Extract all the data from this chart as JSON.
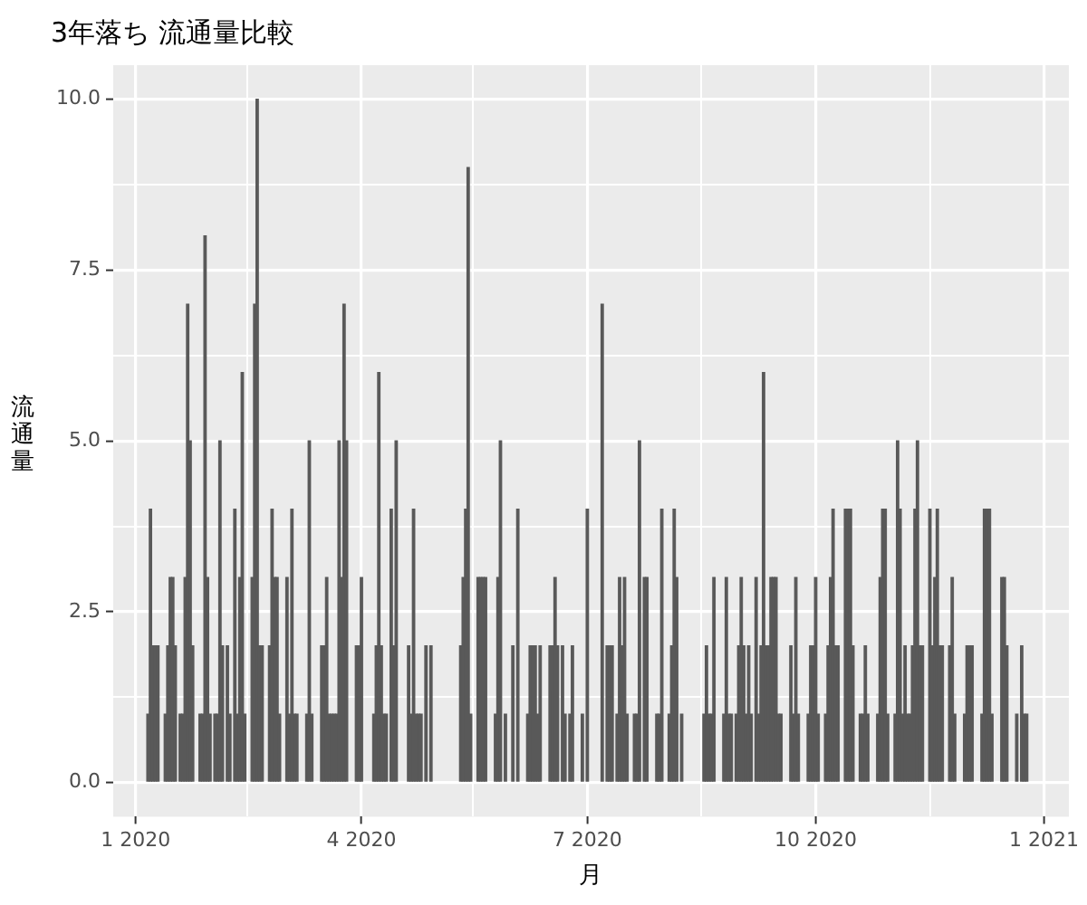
{
  "chart_data": {
    "type": "bar",
    "title": "3年落ち 流通量比較",
    "xlabel": "月",
    "ylabel": "流通量",
    "x": [
      "2020-01-06",
      "2020-01-07",
      "2020-01-08",
      "2020-01-09",
      "2020-01-10",
      "2020-01-13",
      "2020-01-14",
      "2020-01-15",
      "2020-01-16",
      "2020-01-17",
      "2020-01-19",
      "2020-01-20",
      "2020-01-21",
      "2020-01-22",
      "2020-01-23",
      "2020-01-24",
      "2020-01-27",
      "2020-01-28",
      "2020-01-29",
      "2020-01-30",
      "2020-01-31",
      "2020-02-02",
      "2020-02-03",
      "2020-02-04",
      "2020-02-05",
      "2020-02-07",
      "2020-02-08",
      "2020-02-10",
      "2020-02-11",
      "2020-02-12",
      "2020-02-13",
      "2020-02-14",
      "2020-02-17",
      "2020-02-18",
      "2020-02-19",
      "2020-02-20",
      "2020-02-21",
      "2020-02-24",
      "2020-02-25",
      "2020-02-26",
      "2020-02-27",
      "2020-02-28",
      "2020-03-02",
      "2020-03-03",
      "2020-03-04",
      "2020-03-05",
      "2020-03-06",
      "2020-03-10",
      "2020-03-11",
      "2020-03-12",
      "2020-03-16",
      "2020-03-17",
      "2020-03-18",
      "2020-03-19",
      "2020-03-20",
      "2020-03-21",
      "2020-03-22",
      "2020-03-23",
      "2020-03-24",
      "2020-03-25",
      "2020-03-26",
      "2020-03-30",
      "2020-03-31",
      "2020-04-01",
      "2020-04-06",
      "2020-04-07",
      "2020-04-08",
      "2020-04-09",
      "2020-04-10",
      "2020-04-11",
      "2020-04-13",
      "2020-04-14",
      "2020-04-15",
      "2020-04-20",
      "2020-04-21",
      "2020-04-22",
      "2020-04-23",
      "2020-04-24",
      "2020-04-25",
      "2020-04-27",
      "2020-04-29",
      "2020-05-11",
      "2020-05-12",
      "2020-05-13",
      "2020-05-14",
      "2020-05-15",
      "2020-05-18",
      "2020-05-19",
      "2020-05-20",
      "2020-05-21",
      "2020-05-25",
      "2020-05-26",
      "2020-05-27",
      "2020-05-29",
      "2020-06-01",
      "2020-06-03",
      "2020-06-07",
      "2020-06-08",
      "2020-06-09",
      "2020-06-10",
      "2020-06-11",
      "2020-06-12",
      "2020-06-16",
      "2020-06-17",
      "2020-06-18",
      "2020-06-19",
      "2020-06-21",
      "2020-06-22",
      "2020-06-24",
      "2020-06-25",
      "2020-06-29",
      "2020-07-01",
      "2020-07-07",
      "2020-07-09",
      "2020-07-10",
      "2020-07-11",
      "2020-07-13",
      "2020-07-14",
      "2020-07-15",
      "2020-07-16",
      "2020-07-17",
      "2020-07-20",
      "2020-07-21",
      "2020-07-22",
      "2020-07-24",
      "2020-07-25",
      "2020-07-29",
      "2020-07-30",
      "2020-07-31",
      "2020-08-03",
      "2020-08-04",
      "2020-08-05",
      "2020-08-06",
      "2020-08-08",
      "2020-08-17",
      "2020-08-18",
      "2020-08-19",
      "2020-08-20",
      "2020-08-21",
      "2020-08-25",
      "2020-08-26",
      "2020-08-27",
      "2020-08-28",
      "2020-08-30",
      "2020-08-31",
      "2020-09-01",
      "2020-09-02",
      "2020-09-03",
      "2020-09-04",
      "2020-09-05",
      "2020-09-07",
      "2020-09-08",
      "2020-09-09",
      "2020-09-10",
      "2020-09-11",
      "2020-09-12",
      "2020-09-13",
      "2020-09-14",
      "2020-09-15",
      "2020-09-16",
      "2020-09-17",
      "2020-09-21",
      "2020-09-22",
      "2020-09-23",
      "2020-09-24",
      "2020-09-28",
      "2020-09-29",
      "2020-09-30",
      "2020-10-01",
      "2020-10-02",
      "2020-10-05",
      "2020-10-06",
      "2020-10-07",
      "2020-10-08",
      "2020-10-09",
      "2020-10-10",
      "2020-10-13",
      "2020-10-14",
      "2020-10-15",
      "2020-10-16",
      "2020-10-19",
      "2020-10-20",
      "2020-10-21",
      "2020-10-22",
      "2020-10-26",
      "2020-10-27",
      "2020-10-28",
      "2020-10-29",
      "2020-10-30",
      "2020-11-02",
      "2020-11-03",
      "2020-11-04",
      "2020-11-05",
      "2020-11-06",
      "2020-11-07",
      "2020-11-08",
      "2020-11-09",
      "2020-11-10",
      "2020-11-11",
      "2020-11-12",
      "2020-11-13",
      "2020-11-16",
      "2020-11-17",
      "2020-11-18",
      "2020-11-19",
      "2020-11-20",
      "2020-11-21",
      "2020-11-24",
      "2020-11-25",
      "2020-11-26",
      "2020-11-30",
      "2020-12-01",
      "2020-12-02",
      "2020-12-03",
      "2020-12-07",
      "2020-12-08",
      "2020-12-09",
      "2020-12-10",
      "2020-12-11",
      "2020-12-15",
      "2020-12-16",
      "2020-12-17",
      "2020-12-21",
      "2020-12-23",
      "2020-12-24",
      "2020-12-25"
    ],
    "values": [
      1,
      4,
      2,
      2,
      2,
      1,
      2,
      3,
      3,
      2,
      1,
      1,
      3,
      7,
      5,
      2,
      1,
      1,
      8,
      3,
      1,
      1,
      1,
      5,
      2,
      2,
      1,
      4,
      1,
      3,
      6,
      1,
      3,
      7,
      10,
      2,
      2,
      2,
      4,
      3,
      3,
      1,
      3,
      1,
      4,
      1,
      1,
      1,
      5,
      1,
      2,
      2,
      3,
      1,
      1,
      1,
      1,
      5,
      3,
      7,
      5,
      2,
      2,
      3,
      1,
      2,
      6,
      2,
      1,
      1,
      4,
      2,
      5,
      2,
      1,
      4,
      1,
      1,
      1,
      2,
      2,
      2,
      3,
      4,
      9,
      1,
      3,
      3,
      3,
      3,
      1,
      3,
      5,
      1,
      2,
      4,
      1,
      2,
      2,
      2,
      1,
      2,
      2,
      2,
      3,
      2,
      2,
      1,
      1,
      2,
      1,
      4,
      7,
      2,
      2,
      2,
      1,
      3,
      2,
      3,
      1,
      1,
      1,
      5,
      3,
      3,
      1,
      1,
      4,
      1,
      2,
      4,
      3,
      1,
      1,
      2,
      1,
      1,
      3,
      1,
      3,
      1,
      1,
      1,
      2,
      3,
      2,
      1,
      2,
      1,
      3,
      1,
      2,
      6,
      2,
      2,
      3,
      3,
      3,
      1,
      1,
      2,
      1,
      3,
      1,
      1,
      2,
      2,
      3,
      1,
      1,
      2,
      3,
      4,
      2,
      2,
      4,
      4,
      4,
      2,
      1,
      1,
      2,
      1,
      1,
      3,
      4,
      4,
      1,
      1,
      5,
      4,
      1,
      2,
      1,
      1,
      2,
      4,
      5,
      2,
      2,
      4,
      2,
      3,
      4,
      2,
      2,
      2,
      3,
      1,
      1,
      2,
      2,
      2,
      1,
      4,
      4,
      4,
      1,
      3,
      3,
      2,
      1,
      2,
      1,
      1
    ],
    "color": "#595959",
    "xlim": [
      "2019-12-23",
      "2021-01-11"
    ],
    "xticks": [
      {
        "value": "2020-01-01",
        "label": "1 2020"
      },
      {
        "value": "2020-02-15",
        "label": null
      },
      {
        "value": "2020-04-01",
        "label": "4 2020"
      },
      {
        "value": "2020-05-16",
        "label": null
      },
      {
        "value": "2020-07-01",
        "label": "7 2020"
      },
      {
        "value": "2020-08-16",
        "label": null
      },
      {
        "value": "2020-10-01",
        "label": "10 2020"
      },
      {
        "value": "2020-11-16",
        "label": null
      },
      {
        "value": "2021-01-01",
        "label": "1 2021"
      }
    ],
    "ylim": [
      -0.5,
      10.5
    ],
    "yticks": [
      {
        "value": 0,
        "label": "0.0"
      },
      {
        "value": 1.25,
        "label": null
      },
      {
        "value": 2.5,
        "label": "2.5"
      },
      {
        "value": 3.75,
        "label": null
      },
      {
        "value": 5,
        "label": "5.0"
      },
      {
        "value": 6.25,
        "label": null
      },
      {
        "value": 7.5,
        "label": "7.5"
      },
      {
        "value": 8.75,
        "label": null
      },
      {
        "value": 10,
        "label": "10.0"
      }
    ],
    "grid": true
  }
}
